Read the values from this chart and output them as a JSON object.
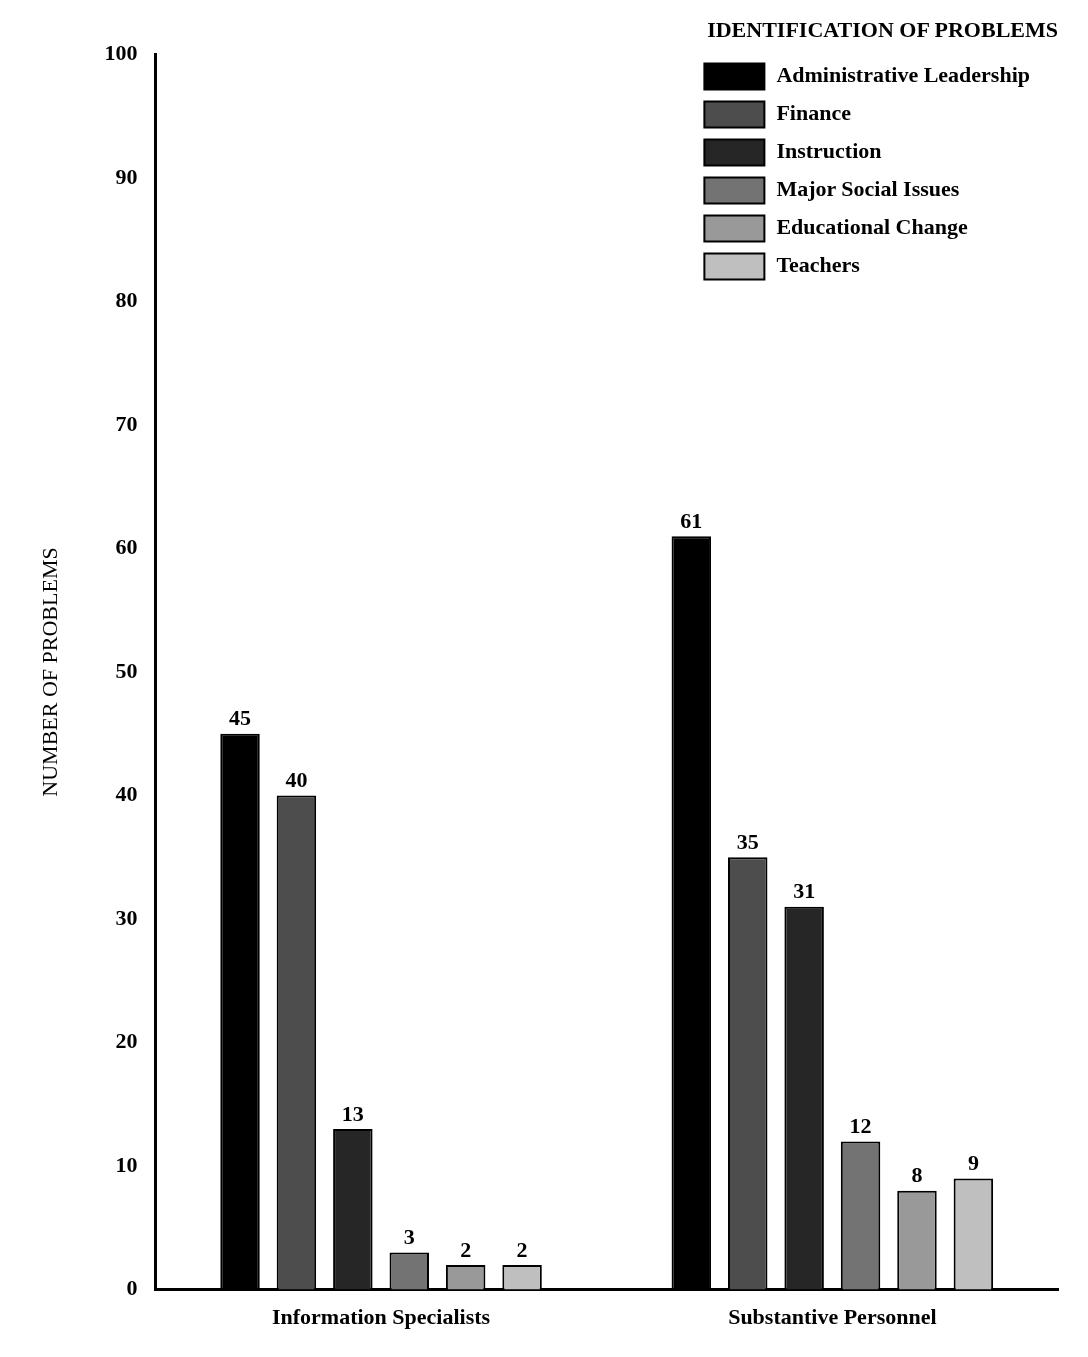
{
  "chart_data": {
    "type": "bar",
    "title": "IDENTIFICATION OF PROBLEMS",
    "ylabel": "NUMBER OF PROBLEMS",
    "categories": [
      "Information Specialists",
      "Substantive Personnel"
    ],
    "series": [
      {
        "name": "Administrative Leadership",
        "color": "#000000",
        "values": [
          45,
          61
        ]
      },
      {
        "name": "Finance",
        "color": "#4d4d4d",
        "values": [
          40,
          35
        ]
      },
      {
        "name": "Instruction",
        "color": "#262626",
        "values": [
          13,
          31
        ]
      },
      {
        "name": "Major Social Issues",
        "color": "#737373",
        "values": [
          3,
          12
        ]
      },
      {
        "name": "Educational Change",
        "color": "#999999",
        "values": [
          2,
          8
        ]
      },
      {
        "name": "Teachers",
        "color": "#bfbfbf",
        "values": [
          2,
          9
        ]
      }
    ],
    "ylim": [
      0,
      100
    ],
    "yticks": [
      0,
      10,
      20,
      30,
      40,
      50,
      60,
      70,
      80,
      90,
      100
    ],
    "grid": false,
    "legend": "top right",
    "data_labels": true
  }
}
